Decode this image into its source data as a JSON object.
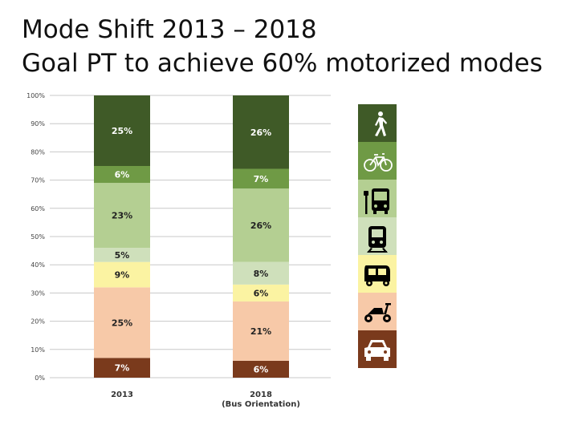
{
  "title_line1": "Mode Shift 2013 – 2018",
  "title_line2": "Goal PT to achieve 60% motorized modes",
  "chart_data": {
    "type": "bar",
    "stacked": true,
    "categories": [
      "2013",
      "2018"
    ],
    "category_sublabels": [
      "",
      "(Bus Orientation)"
    ],
    "ylim": [
      0,
      100
    ],
    "yticks": [
      "0%",
      "10%",
      "20%",
      "30%",
      "40%",
      "50%",
      "60%",
      "70%",
      "80%",
      "90%",
      "100%"
    ],
    "grid": true,
    "series": [
      {
        "icon": "car-icon",
        "color": "#7a3a1c",
        "label_color": "#ffffff",
        "values": [
          7,
          6
        ],
        "labels": [
          "7%",
          "6%"
        ]
      },
      {
        "icon": "scooter-icon",
        "color": "#f7c9a8",
        "label_color": "#222222",
        "values": [
          25,
          21
        ],
        "labels": [
          "25%",
          "21%"
        ]
      },
      {
        "icon": "auto-rickshaw-icon",
        "color": "#fbf3a2",
        "label_color": "#222222",
        "values": [
          9,
          6
        ],
        "labels": [
          "9%",
          "6%"
        ]
      },
      {
        "icon": "train-icon",
        "color": "#cfe0bb",
        "label_color": "#222222",
        "values": [
          5,
          8
        ],
        "labels": [
          "5%",
          "8%"
        ]
      },
      {
        "icon": "bus-icon",
        "color": "#b4cf92",
        "label_color": "#222222",
        "values": [
          23,
          26
        ],
        "labels": [
          "23%",
          "26%"
        ]
      },
      {
        "icon": "bicycle-icon",
        "color": "#6f9a45",
        "label_color": "#ffffff",
        "values": [
          6,
          7
        ],
        "labels": [
          "6%",
          "7%"
        ]
      },
      {
        "icon": "pedestrian-icon",
        "color": "#3f5a27",
        "label_color": "#ffffff",
        "values": [
          25,
          26
        ],
        "labels": [
          "25%",
          "26%"
        ]
      }
    ]
  }
}
